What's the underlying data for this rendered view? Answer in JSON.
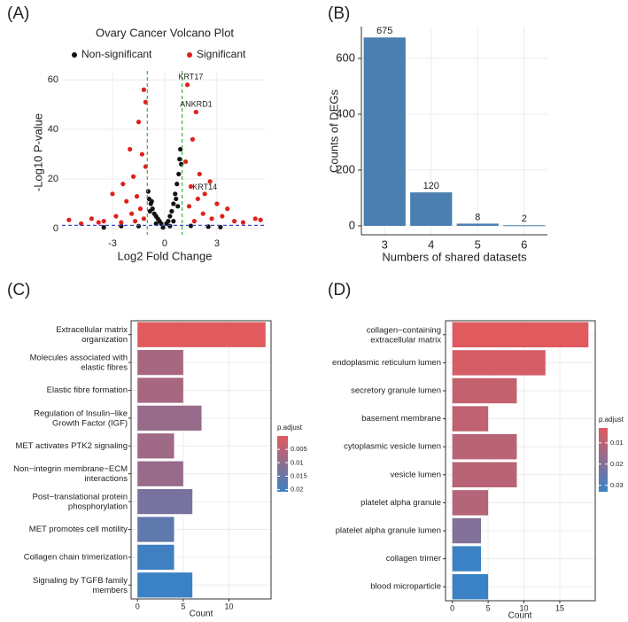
{
  "chart_data": [
    {
      "type": "scatter",
      "panel_label": "(A)",
      "title": "Ovary Cancer Volcano Plot",
      "x_label": "Log2 Fold Change",
      "y_label": "-Log10 P-value",
      "xlim": [
        -5.9,
        5.8
      ],
      "ylim": [
        -2.5,
        63.6
      ],
      "xticks": [
        -3,
        0,
        3
      ],
      "yticks": [
        0,
        20,
        40,
        60
      ],
      "grid": true,
      "series": [
        {
          "name": "Non-significant",
          "color": "#111111",
          "x": [
            -0.9,
            -0.8,
            -0.7,
            -0.6,
            -0.5,
            -0.4,
            -0.3,
            -0.2,
            0.9,
            0.85,
            0.8,
            0.7,
            0.6,
            0.5,
            0.4,
            0.3,
            0.2,
            0.1,
            -0.95,
            0.95,
            -0.85,
            0.75,
            -0.5,
            0.5,
            -2.5,
            2.5,
            -1.5,
            1.5,
            -3.5,
            3.2,
            -0.1,
            0.3,
            0.65,
            -0.75
          ],
          "y": [
            12,
            10,
            8,
            6,
            5,
            4,
            3,
            2,
            32,
            28,
            22,
            18,
            14,
            10,
            7,
            5,
            3,
            2,
            15,
            26,
            7,
            9,
            2,
            3,
            1,
            0.8,
            1,
            1.1,
            0.5,
            0.6,
            0.5,
            1,
            12,
            11
          ]
        },
        {
          "name": "Significant",
          "color": "#e0201b",
          "x": [
            -1.2,
            -1.5,
            -1.1,
            -2.0,
            -1.3,
            -1.8,
            -2.4,
            -3.0,
            -1.6,
            -2.2,
            -1.1,
            -4.2,
            -5.5,
            -3.5,
            -2.8,
            -1.4,
            -1.9,
            -2.5,
            -4.8,
            -3.8,
            1.3,
            1.8,
            1.6,
            2.3,
            1.2,
            2.0,
            2.6,
            1.5,
            1.9,
            3.0,
            3.6,
            2.2,
            1.4,
            4.0,
            5.2,
            5.5,
            3.3,
            2.7,
            1.7,
            4.5,
            -1.7,
            -1.2
          ],
          "y": [
            56,
            43,
            51,
            32,
            30,
            21,
            18,
            14,
            13,
            11,
            25,
            4,
            3.5,
            3,
            5,
            8,
            6,
            2.5,
            2,
            2.5,
            58,
            47,
            36,
            14,
            27,
            22,
            19,
            17,
            12,
            10,
            8,
            6,
            9,
            3,
            4,
            3.5,
            5,
            4,
            3,
            2.5,
            3,
            4
          ]
        }
      ],
      "vlines": {
        "values": [
          -1,
          1
        ],
        "color": "#3cb043"
      },
      "hline": {
        "value": 1.3,
        "color": "#3b4cc0"
      },
      "annotations": [
        {
          "text": "KRT17",
          "x": 1.5,
          "y": 61,
          "color": "#3b4cc0"
        },
        {
          "text": "ANKRD1",
          "x": 1.8,
          "y": 50,
          "color": "#3b4cc0"
        },
        {
          "text": "KRT14",
          "x": 2.3,
          "y": 16.5,
          "color": "#3b4cc0"
        }
      ]
    },
    {
      "type": "bar",
      "panel_label": "(B)",
      "x_label": "Numbers of shared datasets",
      "y_label": "Counts of DEGs",
      "categories": [
        "3",
        "4",
        "5",
        "6"
      ],
      "values": [
        675,
        120,
        8,
        2
      ],
      "color": "#4a7fb0",
      "ylim": [
        -32,
        714
      ],
      "yticks": [
        0,
        200,
        400,
        600
      ],
      "grid": true
    },
    {
      "type": "barh",
      "panel_label": "(C)",
      "x_label": "Count",
      "categories": [
        "Extracellular matrix\norganization",
        "Molecules associated with\nelastic fibres",
        "Elastic fibre formation",
        "Regulation of Insulin−like\nGrowth Factor (IGF)",
        "MET activates PTK2 signaling",
        "Non−integrin membrane−ECM\ninteractions",
        "Post−translational protein\nphosphorylation",
        "MET promotes cell motility",
        "Collagen chain trimerization",
        "Signaling by TGFB family\nmembers"
      ],
      "values": [
        14,
        5,
        5,
        7,
        4,
        5,
        6,
        4,
        4,
        6
      ],
      "p_adjust": [
        1e-05,
        0.007,
        0.007,
        0.009,
        0.008,
        0.009,
        0.013,
        0.016,
        0.02,
        0.0208
      ],
      "xlim": [
        -0.7,
        14.6
      ],
      "xticks": [
        0,
        5,
        10
      ],
      "grid": true,
      "colorbar_title": "p.adjust",
      "clim": [
        1e-05,
        0.0208
      ],
      "cticks": [
        0.005,
        0.01,
        0.015,
        0.02
      ],
      "color_low": "#e05a5e",
      "color_high": "#3a82c4"
    },
    {
      "type": "barh",
      "panel_label": "(D)",
      "x_label": "Count",
      "categories": [
        "collagen−containing\nextracellular matrix",
        "endoplasmic reticulum lumen",
        "secretory granule lumen",
        "basement membrane",
        "cytoplasmic vesicle lumen",
        "vesicle lumen",
        "platelet alpha granule",
        "platelet alpha granule lumen",
        "collagen trimer",
        "blood microparticle"
      ],
      "values": [
        19,
        13,
        9,
        5,
        9,
        9,
        5,
        4,
        4,
        5
      ],
      "p_adjust": [
        0.003,
        0.005,
        0.008,
        0.009,
        0.01,
        0.01,
        0.011,
        0.02,
        0.033,
        0.033
      ],
      "xlim": [
        -0.95,
        19.95
      ],
      "xticks": [
        0,
        5,
        10,
        15
      ],
      "grid": true,
      "colorbar_title": "p.adjust",
      "clim": [
        0.003,
        0.033
      ],
      "cticks": [
        0.01,
        0.02,
        0.03
      ],
      "color_low": "#e05a5e",
      "color_high": "#3a82c4"
    }
  ]
}
